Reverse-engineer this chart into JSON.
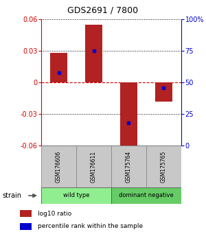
{
  "title": "GDS2691 / 7800",
  "samples": [
    "GSM176606",
    "GSM176611",
    "GSM175764",
    "GSM175765"
  ],
  "log10_ratios": [
    0.028,
    0.055,
    -0.063,
    -0.018
  ],
  "percentile_ranks": [
    0.58,
    0.75,
    0.18,
    0.46
  ],
  "groups": [
    {
      "label": "wild type",
      "indices": [
        0,
        1
      ],
      "color": "#90ee90"
    },
    {
      "label": "dominant negative",
      "indices": [
        2,
        3
      ],
      "color": "#66cc66"
    }
  ],
  "ylim": [
    -0.06,
    0.06
  ],
  "yticks_left": [
    -0.06,
    -0.03,
    0,
    0.03,
    0.06
  ],
  "yticks_right": [
    0,
    25,
    50,
    75,
    100
  ],
  "bar_color": "#b22222",
  "dot_color": "#0000cc",
  "zero_line_color": "#cc0000",
  "grid_color": "#000000",
  "background_color": "#ffffff",
  "title_color": "#000000",
  "left_axis_color": "#cc0000",
  "right_axis_color": "#0000cc",
  "bar_width": 0.5,
  "sample_box_color": "#c8c8c8",
  "legend_red_label": "log10 ratio",
  "legend_blue_label": "percentile rank within the sample",
  "strain_label": "strain"
}
